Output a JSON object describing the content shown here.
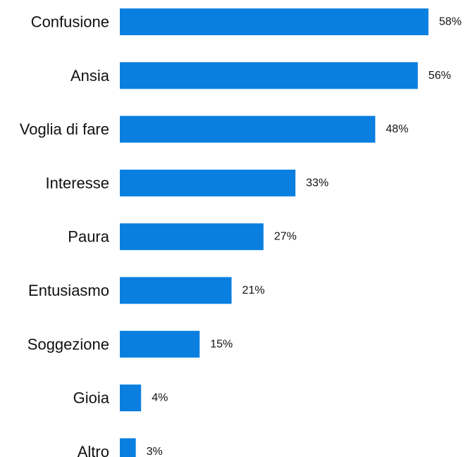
{
  "chart_data": {
    "type": "bar",
    "orientation": "horizontal",
    "categories": [
      "Confusione",
      "Ansia",
      "Voglia di fare",
      "Interesse",
      "Paura",
      "Entusiasmo",
      "Soggezione",
      "Gioia",
      "Altro"
    ],
    "values": [
      58,
      56,
      48,
      33,
      27,
      21,
      15,
      4,
      3
    ],
    "value_labels": [
      "58%",
      "56%",
      "48%",
      "33%",
      "27%",
      "21%",
      "15%",
      "4%",
      "3%"
    ],
    "unit": "%",
    "bar_color": "#0A7FE0",
    "grid": false,
    "legend": "none"
  }
}
